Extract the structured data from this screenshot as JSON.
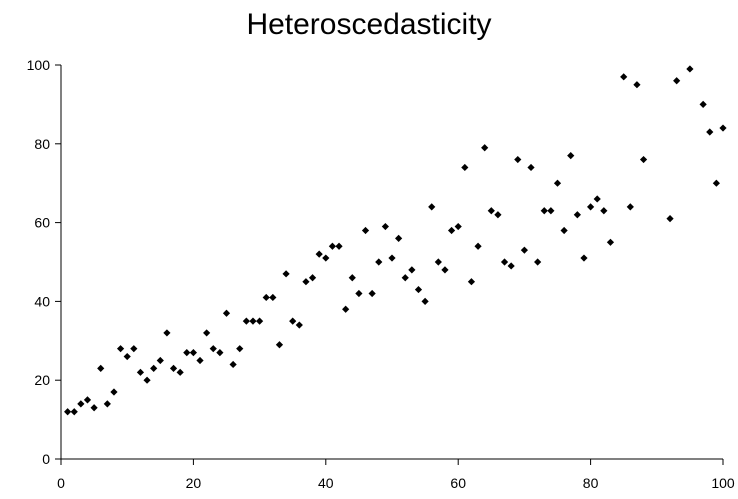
{
  "chart_data": {
    "type": "scatter",
    "title": "Heteroscedasticity",
    "xlabel": "",
    "ylabel": "",
    "xlim": [
      0,
      100
    ],
    "ylim": [
      0,
      100
    ],
    "x_ticks": [
      0,
      20,
      40,
      60,
      80,
      100
    ],
    "y_ticks": [
      0,
      20,
      40,
      60,
      80,
      100
    ],
    "grid": false,
    "legend": "none",
    "marker_color": "#000000",
    "points": [
      [
        1,
        12
      ],
      [
        2,
        12
      ],
      [
        3,
        14
      ],
      [
        4,
        15
      ],
      [
        5,
        13
      ],
      [
        6,
        23
      ],
      [
        7,
        14
      ],
      [
        8,
        17
      ],
      [
        9,
        28
      ],
      [
        10,
        26
      ],
      [
        11,
        28
      ],
      [
        12,
        22
      ],
      [
        13,
        20
      ],
      [
        14,
        23
      ],
      [
        15,
        25
      ],
      [
        16,
        32
      ],
      [
        17,
        23
      ],
      [
        18,
        22
      ],
      [
        19,
        27
      ],
      [
        20,
        27
      ],
      [
        21,
        25
      ],
      [
        22,
        32
      ],
      [
        23,
        28
      ],
      [
        24,
        27
      ],
      [
        25,
        37
      ],
      [
        26,
        24
      ],
      [
        27,
        28
      ],
      [
        28,
        35
      ],
      [
        29,
        35
      ],
      [
        30,
        35
      ],
      [
        31,
        41
      ],
      [
        32,
        41
      ],
      [
        33,
        29
      ],
      [
        34,
        47
      ],
      [
        35,
        35
      ],
      [
        36,
        34
      ],
      [
        37,
        45
      ],
      [
        38,
        46
      ],
      [
        39,
        52
      ],
      [
        40,
        51
      ],
      [
        41,
        54
      ],
      [
        42,
        54
      ],
      [
        43,
        38
      ],
      [
        44,
        46
      ],
      [
        45,
        42
      ],
      [
        46,
        58
      ],
      [
        47,
        42
      ],
      [
        48,
        50
      ],
      [
        49,
        59
      ],
      [
        50,
        51
      ],
      [
        51,
        56
      ],
      [
        52,
        46
      ],
      [
        53,
        48
      ],
      [
        54,
        43
      ],
      [
        55,
        40
      ],
      [
        56,
        64
      ],
      [
        57,
        50
      ],
      [
        58,
        48
      ],
      [
        59,
        58
      ],
      [
        60,
        59
      ],
      [
        61,
        74
      ],
      [
        62,
        45
      ],
      [
        63,
        54
      ],
      [
        64,
        79
      ],
      [
        65,
        63
      ],
      [
        66,
        62
      ],
      [
        67,
        50
      ],
      [
        68,
        49
      ],
      [
        69,
        76
      ],
      [
        70,
        53
      ],
      [
        71,
        74
      ],
      [
        72,
        50
      ],
      [
        73,
        63
      ],
      [
        74,
        63
      ],
      [
        75,
        70
      ],
      [
        76,
        58
      ],
      [
        77,
        77
      ],
      [
        78,
        62
      ],
      [
        79,
        51
      ],
      [
        80,
        64
      ],
      [
        81,
        66
      ],
      [
        82,
        63
      ],
      [
        83,
        55
      ],
      [
        85,
        97
      ],
      [
        86,
        64
      ],
      [
        87,
        95
      ],
      [
        88,
        76
      ],
      [
        92,
        61
      ],
      [
        93,
        96
      ],
      [
        95,
        99
      ],
      [
        97,
        90
      ],
      [
        98,
        83
      ],
      [
        99,
        70
      ],
      [
        100,
        84
      ]
    ]
  }
}
